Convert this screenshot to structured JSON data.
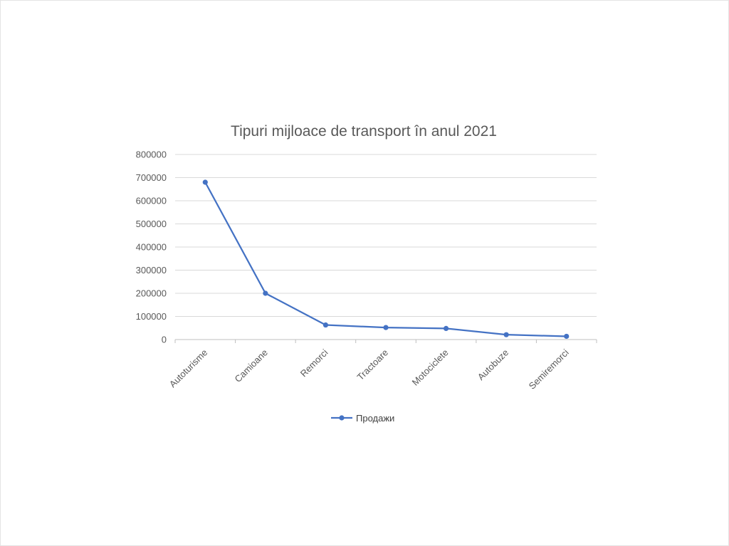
{
  "chart_data": {
    "type": "line",
    "title": "Tipuri mijloace de transport în anul 2021",
    "xlabel": "",
    "ylabel": "",
    "categories": [
      "Autoturisme",
      "Camioane",
      "Remorci",
      "Tractoare",
      "Motociclete",
      "Autobuze",
      "Semiremorci"
    ],
    "series": [
      {
        "name": "Продажи",
        "values": [
          680000,
          200000,
          63000,
          52000,
          48000,
          21000,
          14000
        ],
        "color": "#4472C4"
      }
    ],
    "ylim": [
      0,
      800000
    ],
    "yticks": [
      0,
      100000,
      200000,
      300000,
      400000,
      500000,
      600000,
      700000,
      800000
    ],
    "ytick_labels": [
      "0",
      "100000",
      "200000",
      "300000",
      "400000",
      "500000",
      "600000",
      "700000",
      "800000"
    ],
    "grid": true,
    "legend_position": "bottom",
    "colors": {
      "series": "#4472C4",
      "grid": "#d9d9d9",
      "axis": "#bfbfbf",
      "text": "#595959"
    }
  }
}
